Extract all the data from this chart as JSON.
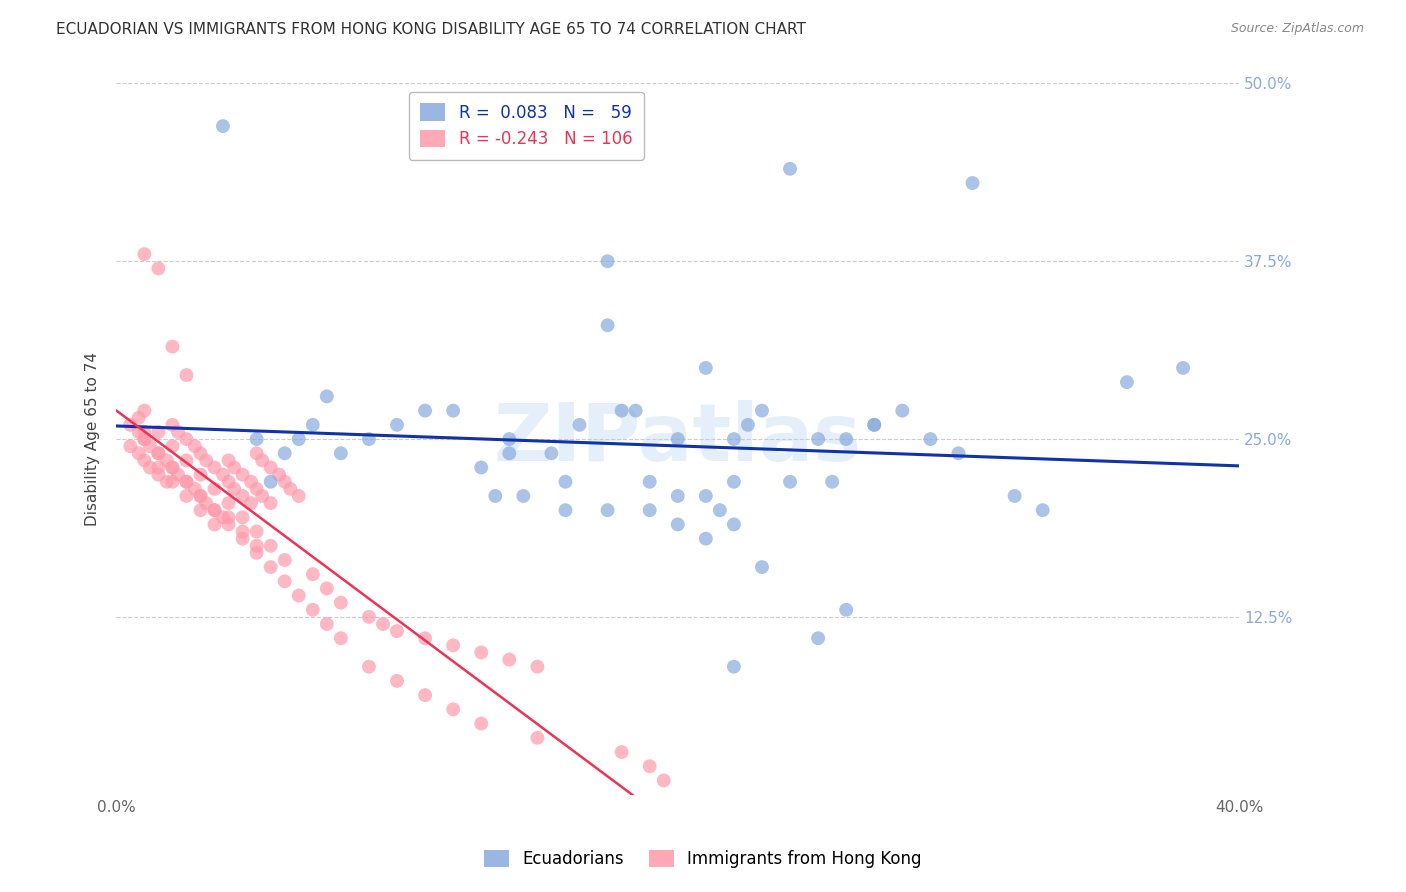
{
  "title": "ECUADORIAN VS IMMIGRANTS FROM HONG KONG DISABILITY AGE 65 TO 74 CORRELATION CHART",
  "source": "Source: ZipAtlas.com",
  "ylabel": "Disability Age 65 to 74",
  "xlim": [
    0.0,
    0.4
  ],
  "ylim": [
    0.0,
    0.5
  ],
  "yticks_right": [
    0.125,
    0.25,
    0.375,
    0.5
  ],
  "yticklabels_right": [
    "12.5%",
    "25.0%",
    "37.5%",
    "50.0%"
  ],
  "background_color": "#ffffff",
  "watermark": "ZIPatlas",
  "watermark_color": "#aaccee",
  "blue_color": "#88aadd",
  "pink_color": "#ff99aa",
  "line_blue_color": "#1133aa",
  "line_pink_color": "#ee3355",
  "tick_label_color_blue": "#88aadd",
  "title_fontsize": 11,
  "axis_label_fontsize": 11,
  "tick_fontsize": 11,
  "source_fontsize": 9,
  "blue_N": 59,
  "pink_N": 106,
  "blue_x": [
    0.038,
    0.175,
    0.24,
    0.305,
    0.175,
    0.21,
    0.185,
    0.12,
    0.13,
    0.05,
    0.065,
    0.07,
    0.06,
    0.055,
    0.075,
    0.08,
    0.09,
    0.1,
    0.11,
    0.14,
    0.155,
    0.165,
    0.18,
    0.2,
    0.22,
    0.225,
    0.25,
    0.26,
    0.27,
    0.28,
    0.29,
    0.3,
    0.32,
    0.33,
    0.23,
    0.27,
    0.14,
    0.16,
    0.19,
    0.2,
    0.22,
    0.24,
    0.135,
    0.145,
    0.16,
    0.175,
    0.19,
    0.21,
    0.215,
    0.36,
    0.38,
    0.2,
    0.21,
    0.22,
    0.23,
    0.25,
    0.26,
    0.255,
    0.22
  ],
  "blue_y": [
    0.47,
    0.375,
    0.44,
    0.43,
    0.33,
    0.3,
    0.27,
    0.27,
    0.23,
    0.25,
    0.25,
    0.26,
    0.24,
    0.22,
    0.28,
    0.24,
    0.25,
    0.26,
    0.27,
    0.25,
    0.24,
    0.26,
    0.27,
    0.25,
    0.25,
    0.26,
    0.25,
    0.25,
    0.26,
    0.27,
    0.25,
    0.24,
    0.21,
    0.2,
    0.27,
    0.26,
    0.24,
    0.22,
    0.22,
    0.21,
    0.22,
    0.22,
    0.21,
    0.21,
    0.2,
    0.2,
    0.2,
    0.21,
    0.2,
    0.29,
    0.3,
    0.19,
    0.18,
    0.19,
    0.16,
    0.11,
    0.13,
    0.22,
    0.09
  ],
  "pink_x": [
    0.005,
    0.008,
    0.01,
    0.012,
    0.015,
    0.018,
    0.02,
    0.022,
    0.025,
    0.028,
    0.03,
    0.032,
    0.035,
    0.038,
    0.04,
    0.042,
    0.045,
    0.048,
    0.05,
    0.052,
    0.055,
    0.058,
    0.06,
    0.062,
    0.065,
    0.008,
    0.01,
    0.012,
    0.015,
    0.018,
    0.02,
    0.022,
    0.025,
    0.028,
    0.03,
    0.032,
    0.035,
    0.038,
    0.04,
    0.042,
    0.045,
    0.048,
    0.05,
    0.052,
    0.055,
    0.008,
    0.01,
    0.015,
    0.02,
    0.025,
    0.03,
    0.035,
    0.04,
    0.045,
    0.05,
    0.01,
    0.015,
    0.02,
    0.025,
    0.03,
    0.035,
    0.04,
    0.045,
    0.05,
    0.055,
    0.06,
    0.07,
    0.075,
    0.08,
    0.09,
    0.095,
    0.1,
    0.11,
    0.12,
    0.13,
    0.14,
    0.15,
    0.005,
    0.01,
    0.015,
    0.02,
    0.025,
    0.03,
    0.035,
    0.04,
    0.045,
    0.05,
    0.055,
    0.06,
    0.065,
    0.07,
    0.075,
    0.08,
    0.09,
    0.1,
    0.11,
    0.12,
    0.13,
    0.15,
    0.18,
    0.19,
    0.195,
    0.01,
    0.015,
    0.02,
    0.025
  ],
  "pink_y": [
    0.245,
    0.24,
    0.235,
    0.23,
    0.225,
    0.22,
    0.26,
    0.255,
    0.25,
    0.245,
    0.24,
    0.235,
    0.23,
    0.225,
    0.22,
    0.215,
    0.21,
    0.205,
    0.24,
    0.235,
    0.23,
    0.225,
    0.22,
    0.215,
    0.21,
    0.255,
    0.25,
    0.245,
    0.24,
    0.235,
    0.23,
    0.225,
    0.22,
    0.215,
    0.21,
    0.205,
    0.2,
    0.195,
    0.235,
    0.23,
    0.225,
    0.22,
    0.215,
    0.21,
    0.205,
    0.265,
    0.255,
    0.23,
    0.22,
    0.21,
    0.2,
    0.19,
    0.195,
    0.185,
    0.175,
    0.27,
    0.255,
    0.245,
    0.235,
    0.225,
    0.215,
    0.205,
    0.195,
    0.185,
    0.175,
    0.165,
    0.155,
    0.145,
    0.135,
    0.125,
    0.12,
    0.115,
    0.11,
    0.105,
    0.1,
    0.095,
    0.09,
    0.26,
    0.25,
    0.24,
    0.23,
    0.22,
    0.21,
    0.2,
    0.19,
    0.18,
    0.17,
    0.16,
    0.15,
    0.14,
    0.13,
    0.12,
    0.11,
    0.09,
    0.08,
    0.07,
    0.06,
    0.05,
    0.04,
    0.03,
    0.02,
    0.01,
    0.38,
    0.37,
    0.315,
    0.295
  ]
}
